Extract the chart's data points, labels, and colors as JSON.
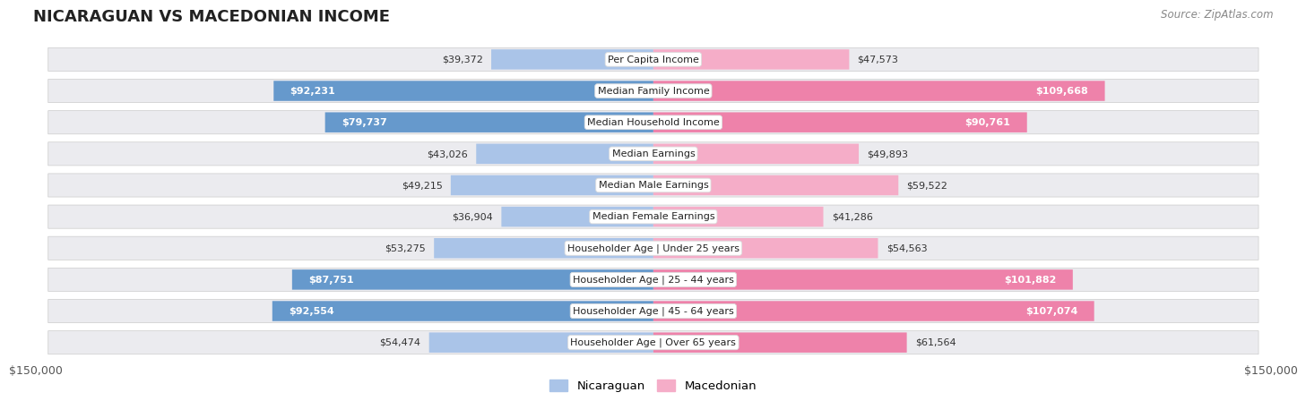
{
  "title": "NICARAGUAN VS MACEDONIAN INCOME",
  "source": "Source: ZipAtlas.com",
  "categories": [
    "Per Capita Income",
    "Median Family Income",
    "Median Household Income",
    "Median Earnings",
    "Median Male Earnings",
    "Median Female Earnings",
    "Householder Age | Under 25 years",
    "Householder Age | 25 - 44 years",
    "Householder Age | 45 - 64 years",
    "Householder Age | Over 65 years"
  ],
  "nicaraguan_values": [
    39372,
    92231,
    79737,
    43026,
    49215,
    36904,
    53275,
    87751,
    92554,
    54474
  ],
  "macedonian_values": [
    47573,
    109668,
    90761,
    49893,
    59522,
    41286,
    54563,
    101882,
    107074,
    61564
  ],
  "nicaraguan_labels": [
    "$39,372",
    "$92,231",
    "$79,737",
    "$43,026",
    "$49,215",
    "$36,904",
    "$53,275",
    "$87,751",
    "$92,554",
    "$54,474"
  ],
  "macedonian_labels": [
    "$47,573",
    "$109,668",
    "$90,761",
    "$49,893",
    "$59,522",
    "$41,286",
    "$54,563",
    "$101,882",
    "$107,074",
    "$61,564"
  ],
  "max_value": 150000,
  "blue_light": "#aac4e8",
  "blue_dark": "#6699cc",
  "pink_light": "#f5adc8",
  "pink_dark": "#ee82aa",
  "row_bg": "#e8e8ed",
  "blue_legend": "Nicaraguan",
  "pink_legend": "Macedonian",
  "axis_label": "$150,000",
  "nicaraguan_white_text": [
    false,
    true,
    true,
    false,
    false,
    false,
    false,
    true,
    true,
    false
  ],
  "macedonian_white_text": [
    false,
    true,
    true,
    false,
    false,
    false,
    false,
    true,
    true,
    false
  ],
  "threshold": 60000
}
